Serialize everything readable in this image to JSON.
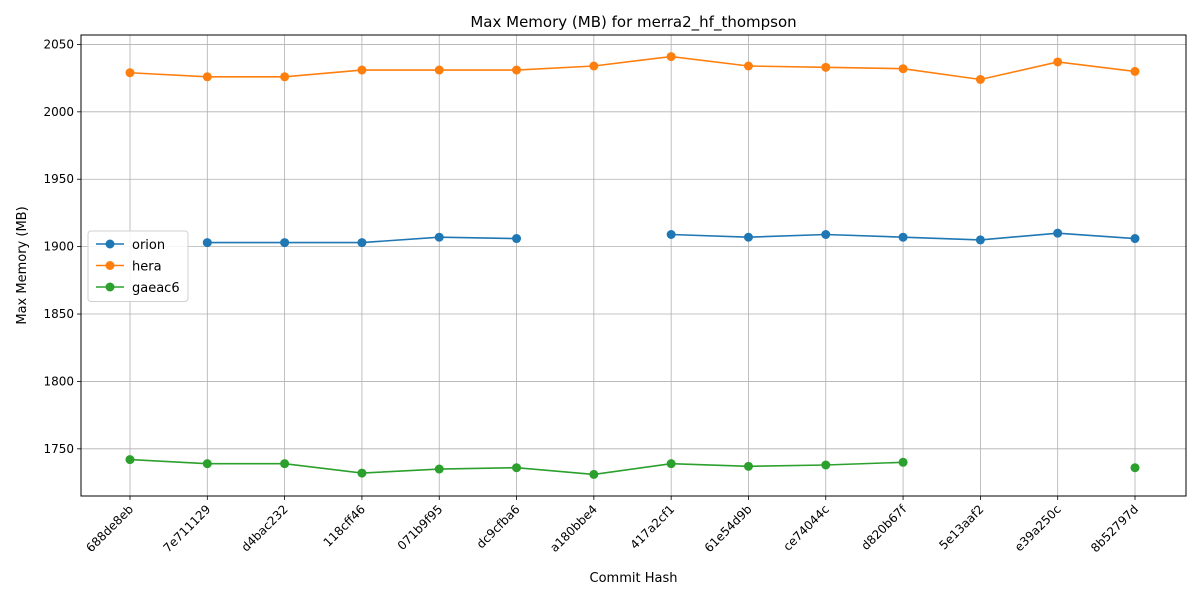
{
  "chart_data": {
    "type": "line",
    "title": "Max Memory (MB) for merra2_hf_thompson",
    "xlabel": "Commit Hash",
    "ylabel": "Max Memory (MB)",
    "categories": [
      "688de8eb",
      "7e711129",
      "d4bac232",
      "118cff46",
      "071b9f95",
      "dc9cfba6",
      "a180bbe4",
      "417a2cf1",
      "61e54d9b",
      "ce74044c",
      "d820b67f",
      "5e13aaf2",
      "e39a250c",
      "8b52797d"
    ],
    "ylim": [
      1715,
      2057
    ],
    "yticks": [
      1750,
      1800,
      1850,
      1900,
      1950,
      2000,
      2050
    ],
    "grid": true,
    "legend_position": "center-left",
    "series": [
      {
        "name": "orion",
        "color": "#1f77b4",
        "values": [
          null,
          1903,
          1903,
          1903,
          1907,
          1906,
          null,
          1909,
          1907,
          1909,
          1907,
          1905,
          1910,
          1906
        ]
      },
      {
        "name": "hera",
        "color": "#ff7f0e",
        "values": [
          2029,
          2026,
          2026,
          2031,
          2031,
          2031,
          2034,
          2041,
          2034,
          2033,
          2032,
          2024,
          2037,
          2030
        ]
      },
      {
        "name": "gaeac6",
        "color": "#2ca02c",
        "values": [
          1742,
          1739,
          1739,
          1732,
          1735,
          1736,
          1731,
          1739,
          1737,
          1738,
          1740,
          null,
          null,
          1736
        ]
      }
    ]
  }
}
